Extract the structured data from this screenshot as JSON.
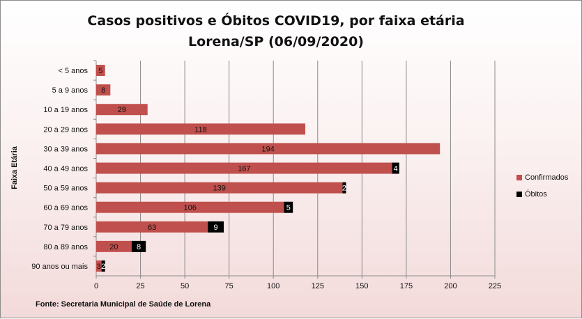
{
  "chart_data": {
    "type": "bar",
    "orientation": "horizontal",
    "stacked": true,
    "title": [
      "Casos positivos e Óbitos COVID19, por faixa etária",
      "Lorena/SP (06/09/2020)"
    ],
    "ylabel": "Faixa Etária",
    "source": "Fonte: Secretaria Municipal  de Saúde de Lorena",
    "categories": [
      "< 5 anos",
      "5 a 9 anos",
      "10 a 19 anos",
      "20 a 29 anos",
      "30 a 39 anos",
      "40 a 49 anos",
      "50 a 59 anos",
      "60 a 69 anos",
      "70 a 79 anos",
      "80 a 89 anos",
      "90 anos ou mais"
    ],
    "series": [
      {
        "name": "Confirmados",
        "color": "#c0504d",
        "values": [
          5,
          8,
          29,
          118,
          194,
          167,
          139,
          106,
          63,
          20,
          3
        ]
      },
      {
        "name": "Óbitos",
        "color": "#000000",
        "values": [
          null,
          null,
          null,
          null,
          null,
          4,
          2,
          5,
          9,
          8,
          2
        ]
      }
    ],
    "xlim": [
      0,
      225
    ],
    "xticks": [
      0,
      25,
      50,
      75,
      100,
      125,
      150,
      175,
      200,
      225
    ],
    "grid": true,
    "legend_position": "right"
  }
}
